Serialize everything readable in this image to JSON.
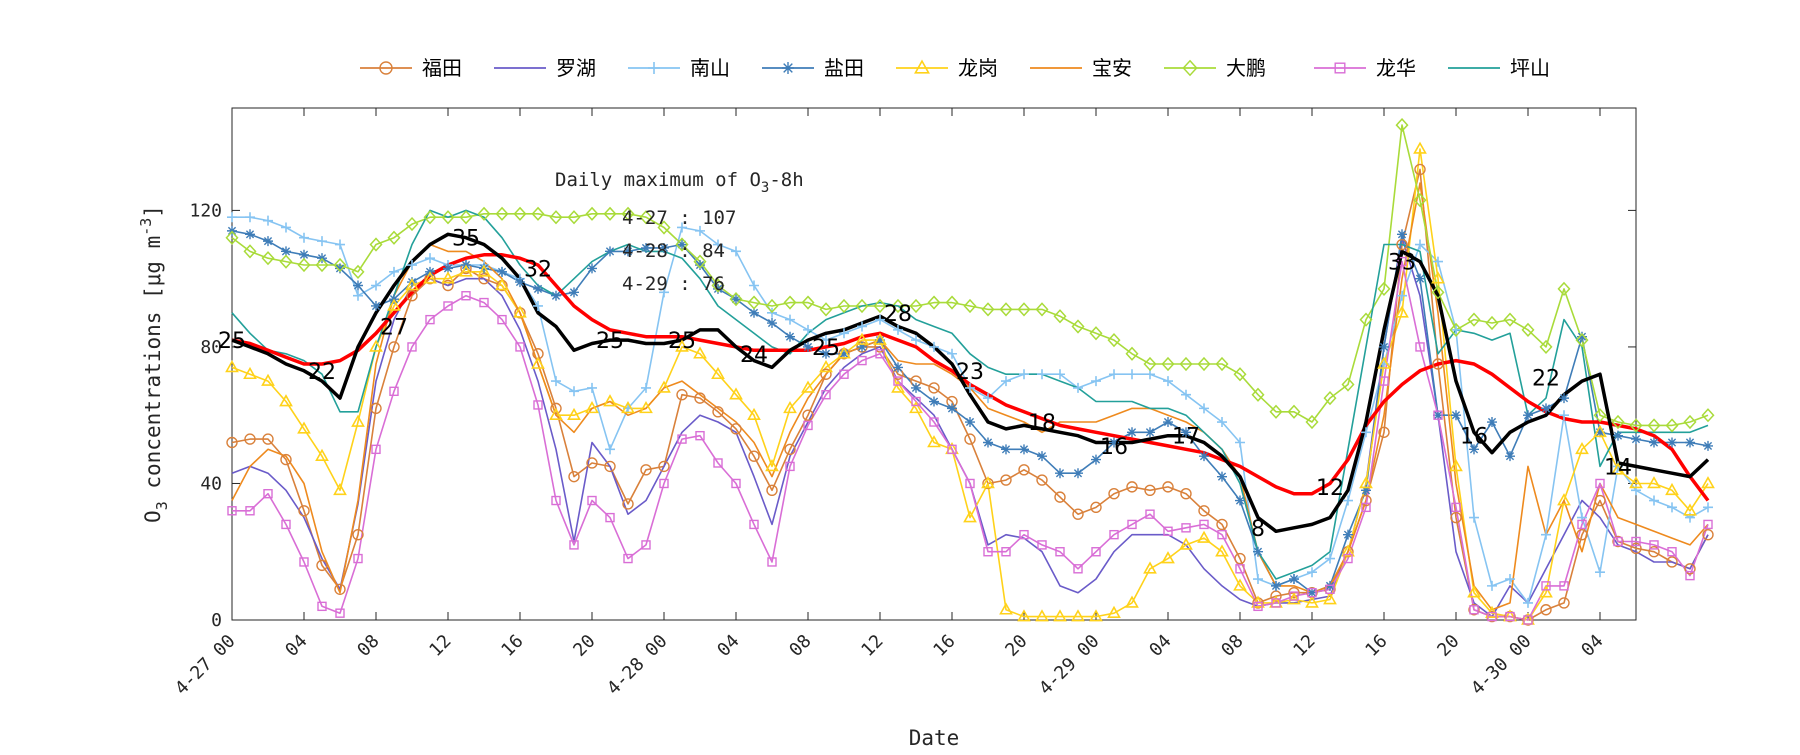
{
  "chart_data": {
    "type": "line",
    "title": "",
    "xlabel": "Date",
    "ylabel": "O3 concentrations [μg m-3]",
    "ylim": [
      0,
      150
    ],
    "xlim": [
      0,
      78
    ],
    "grid": "off",
    "legend_position": "top",
    "yticks": [
      0,
      40,
      80,
      120
    ],
    "xticks": [
      {
        "x": 0,
        "label": "4-27 00"
      },
      {
        "x": 4,
        "label": "04"
      },
      {
        "x": 8,
        "label": "08"
      },
      {
        "x": 12,
        "label": "12"
      },
      {
        "x": 16,
        "label": "16"
      },
      {
        "x": 20,
        "label": "20"
      },
      {
        "x": 24,
        "label": "4-28 00"
      },
      {
        "x": 28,
        "label": "04"
      },
      {
        "x": 32,
        "label": "08"
      },
      {
        "x": 36,
        "label": "12"
      },
      {
        "x": 40,
        "label": "16"
      },
      {
        "x": 44,
        "label": "20"
      },
      {
        "x": 48,
        "label": "4-29 00"
      },
      {
        "x": 52,
        "label": "04"
      },
      {
        "x": 56,
        "label": "08"
      },
      {
        "x": 60,
        "label": "12"
      },
      {
        "x": 64,
        "label": "16"
      },
      {
        "x": 68,
        "label": "20"
      },
      {
        "x": 72,
        "label": "4-30 00"
      },
      {
        "x": 76,
        "label": "04"
      }
    ],
    "annotation": {
      "title_parts": [
        "Daily maximum of O",
        "3",
        "-8h"
      ],
      "lines": [
        "4-27 : 107",
        "4-28 : 84",
        "4-29 : 76"
      ]
    },
    "series": [
      {
        "name": "福田",
        "color": "#D9813B",
        "marker": "circle",
        "values": [
          52,
          53,
          53,
          47,
          32,
          16,
          9,
          25,
          62,
          80,
          95,
          100,
          98,
          103,
          100,
          98,
          90,
          78,
          62,
          42,
          46,
          45,
          34,
          44,
          45,
          66,
          65,
          61,
          56,
          48,
          38,
          50,
          60,
          72,
          78,
          80,
          80,
          72,
          70,
          68,
          64,
          53,
          40,
          41,
          44,
          41,
          36,
          31,
          33,
          37,
          39,
          38,
          39,
          37,
          32,
          28,
          18,
          5,
          7,
          8,
          8,
          9,
          20,
          35,
          55,
          110,
          132,
          75,
          30,
          3,
          1,
          1,
          0,
          3,
          5,
          25,
          35,
          23,
          21,
          20,
          17,
          15,
          25
        ]
      },
      {
        "name": "罗湖",
        "color": "#6A5BC9",
        "marker": "none",
        "values": [
          43,
          45,
          43,
          38,
          30,
          18,
          9,
          34,
          70,
          88,
          98,
          100,
          98,
          100,
          100,
          95,
          85,
          70,
          50,
          23,
          52,
          45,
          31,
          35,
          45,
          55,
          60,
          58,
          55,
          42,
          28,
          48,
          58,
          68,
          74,
          78,
          80,
          70,
          65,
          60,
          50,
          40,
          22,
          25,
          24,
          20,
          10,
          8,
          12,
          20,
          25,
          25,
          25,
          22,
          15,
          10,
          6,
          4,
          5,
          5,
          6,
          7,
          20,
          40,
          80,
          112,
          95,
          60,
          20,
          5,
          1,
          10,
          5,
          15,
          25,
          35,
          30,
          22,
          20,
          17,
          17,
          15,
          25
        ]
      },
      {
        "name": "南山",
        "color": "#86C4F2",
        "marker": "plus",
        "values": [
          118,
          118,
          117,
          115,
          112,
          111,
          110,
          95,
          98,
          102,
          104,
          106,
          104,
          104,
          104,
          102,
          100,
          92,
          70,
          67,
          68,
          50,
          62,
          68,
          96,
          115,
          114,
          110,
          108,
          98,
          90,
          88,
          85,
          82,
          84,
          86,
          88,
          85,
          82,
          80,
          78,
          68,
          65,
          70,
          72,
          72,
          72,
          68,
          70,
          72,
          72,
          72,
          70,
          66,
          62,
          58,
          52,
          12,
          10,
          12,
          14,
          18,
          35,
          55,
          75,
          95,
          110,
          105,
          85,
          30,
          10,
          12,
          5,
          25,
          60,
          30,
          14,
          45,
          38,
          35,
          33,
          30,
          33
        ]
      },
      {
        "name": "盐田",
        "color": "#3F7DB8",
        "marker": "star",
        "values": [
          114,
          113,
          111,
          108,
          107,
          106,
          103,
          98,
          92,
          94,
          99,
          102,
          103,
          104,
          103,
          102,
          99,
          97,
          95,
          96,
          103,
          108,
          108,
          109,
          109,
          110,
          104,
          97,
          94,
          90,
          87,
          83,
          80,
          78,
          78,
          80,
          82,
          74,
          68,
          64,
          62,
          58,
          52,
          50,
          50,
          48,
          43,
          43,
          47,
          52,
          55,
          55,
          58,
          55,
          48,
          42,
          35,
          20,
          10,
          12,
          8,
          10,
          25,
          38,
          80,
          113,
          100,
          60,
          60,
          50,
          58,
          48,
          60,
          62,
          65,
          83,
          55,
          54,
          53,
          52,
          52,
          52,
          51
        ]
      },
      {
        "name": "龙岗",
        "color": "#FFD21A",
        "marker": "triangle",
        "values": [
          74,
          72,
          70,
          64,
          56,
          48,
          38,
          58,
          80,
          92,
          98,
          100,
          100,
          102,
          102,
          98,
          90,
          75,
          60,
          60,
          62,
          64,
          62,
          62,
          68,
          80,
          78,
          72,
          66,
          60,
          45,
          62,
          68,
          74,
          78,
          82,
          82,
          68,
          62,
          52,
          50,
          30,
          40,
          3,
          1,
          1,
          1,
          1,
          1,
          2,
          5,
          15,
          18,
          22,
          24,
          20,
          10,
          5,
          5,
          6,
          5,
          6,
          20,
          40,
          75,
          90,
          138,
          100,
          45,
          8,
          2,
          1,
          0,
          8,
          35,
          50,
          55,
          44,
          40,
          40,
          38,
          32,
          40
        ]
      },
      {
        "name": "宝安",
        "color": "#EE8A1E",
        "marker": "none",
        "values": [
          35,
          45,
          50,
          48,
          40,
          20,
          8,
          35,
          75,
          95,
          105,
          110,
          108,
          108,
          105,
          100,
          90,
          75,
          60,
          55,
          62,
          64,
          60,
          62,
          68,
          70,
          66,
          62,
          58,
          52,
          42,
          55,
          65,
          72,
          78,
          80,
          82,
          76,
          75,
          75,
          72,
          68,
          62,
          60,
          58,
          55,
          58,
          58,
          58,
          60,
          62,
          62,
          60,
          58,
          55,
          50,
          42,
          20,
          10,
          10,
          8,
          10,
          20,
          35,
          60,
          100,
          128,
          90,
          40,
          10,
          3,
          5,
          45,
          25,
          35,
          20,
          40,
          30,
          28,
          26,
          24,
          22,
          28
        ]
      },
      {
        "name": "大鹏",
        "color": "#A9DB3A",
        "marker": "diamond",
        "values": [
          112,
          108,
          106,
          105,
          104,
          104,
          104,
          102,
          110,
          112,
          116,
          118,
          118,
          118,
          119,
          119,
          119,
          119,
          118,
          118,
          119,
          119,
          119,
          118,
          115,
          110,
          105,
          98,
          94,
          93,
          92,
          93,
          93,
          91,
          92,
          92,
          92,
          92,
          92,
          93,
          93,
          92,
          91,
          91,
          91,
          91,
          89,
          86,
          84,
          82,
          78,
          75,
          75,
          75,
          75,
          75,
          72,
          66,
          61,
          61,
          58,
          65,
          69,
          88,
          97,
          145,
          123,
          96,
          85,
          88,
          87,
          88,
          85,
          80,
          97,
          82,
          60,
          58,
          57,
          57,
          57,
          58,
          60
        ]
      },
      {
        "name": "龙华",
        "color": "#D96ED6",
        "marker": "square",
        "values": [
          32,
          32,
          37,
          28,
          17,
          4,
          2,
          18,
          50,
          67,
          80,
          88,
          92,
          95,
          93,
          88,
          80,
          63,
          35,
          22,
          35,
          30,
          18,
          22,
          40,
          53,
          54,
          46,
          40,
          28,
          17,
          45,
          57,
          66,
          72,
          76,
          78,
          70,
          64,
          58,
          50,
          40,
          20,
          20,
          25,
          22,
          20,
          15,
          20,
          25,
          28,
          31,
          26,
          27,
          28,
          25,
          15,
          4,
          5,
          7,
          8,
          9,
          18,
          33,
          70,
          105,
          80,
          60,
          33,
          3,
          1,
          1,
          0,
          10,
          10,
          28,
          40,
          23,
          23,
          22,
          20,
          13,
          28
        ]
      },
      {
        "name": "坪山",
        "color": "#23A09A",
        "marker": "none",
        "values": [
          90,
          84,
          79,
          78,
          76,
          72,
          61,
          61,
          80,
          95,
          110,
          120,
          118,
          120,
          118,
          112,
          104,
          98,
          95,
          100,
          105,
          108,
          110,
          108,
          108,
          106,
          100,
          92,
          88,
          84,
          80,
          78,
          84,
          88,
          90,
          92,
          93,
          92,
          88,
          86,
          84,
          78,
          74,
          72,
          72,
          72,
          70,
          68,
          64,
          64,
          64,
          62,
          62,
          60,
          55,
          50,
          40,
          20,
          12,
          14,
          16,
          20,
          50,
          80,
          110,
          110,
          108,
          78,
          85,
          84,
          82,
          84,
          60,
          65,
          88,
          80,
          45,
          55,
          55,
          55,
          55,
          55,
          57
        ]
      },
      {
        "name": "",
        "color": "#000000",
        "marker": "none",
        "width": 3.5,
        "values": [
          82,
          80,
          78,
          75,
          73,
          70,
          65,
          80,
          90,
          98,
          105,
          110,
          113,
          112,
          110,
          106,
          100,
          90,
          86,
          79,
          81,
          82,
          82,
          81,
          81,
          82,
          85,
          85,
          80,
          76,
          74,
          79,
          82,
          84,
          85,
          87,
          89,
          86,
          84,
          80,
          75,
          66,
          58,
          56,
          57,
          56,
          55,
          54,
          52,
          52,
          52,
          53,
          54,
          54,
          52,
          48,
          42,
          30,
          26,
          27,
          28,
          30,
          38,
          58,
          85,
          108,
          105,
          95,
          70,
          55,
          49,
          55,
          58,
          60,
          66,
          70,
          72,
          46,
          45,
          44,
          43,
          42,
          47
        ]
      },
      {
        "name": "",
        "color": "#FF0000",
        "marker": "none",
        "width": 3.5,
        "values": [
          82,
          81,
          79,
          77,
          75,
          75,
          76,
          79,
          84,
          90,
          96,
          101,
          104,
          106,
          107,
          107,
          106,
          104,
          98,
          92,
          88,
          85,
          84,
          83,
          83,
          83,
          82,
          81,
          80,
          79,
          79,
          79,
          79,
          80,
          81,
          83,
          84,
          82,
          80,
          76,
          73,
          69,
          66,
          63,
          61,
          59,
          57,
          56,
          55,
          54,
          53,
          52,
          51,
          50,
          49,
          47,
          45,
          42,
          39,
          37,
          37,
          40,
          47,
          57,
          64,
          69,
          73,
          75,
          76,
          75,
          72,
          68,
          64,
          61,
          59,
          58,
          58,
          57,
          56,
          54,
          50,
          42,
          35
        ]
      }
    ],
    "segment_labels": [
      {
        "x": 0,
        "y": 82,
        "text": "25"
      },
      {
        "x": 5,
        "y": 73,
        "text": "22"
      },
      {
        "x": 9,
        "y": 86,
        "text": "27"
      },
      {
        "x": 13,
        "y": 112,
        "text": "35"
      },
      {
        "x": 17,
        "y": 103,
        "text": "32"
      },
      {
        "x": 21,
        "y": 82,
        "text": "25"
      },
      {
        "x": 25,
        "y": 82,
        "text": "25"
      },
      {
        "x": 29,
        "y": 78,
        "text": "24"
      },
      {
        "x": 33,
        "y": 80,
        "text": "25"
      },
      {
        "x": 37,
        "y": 90,
        "text": "28"
      },
      {
        "x": 41,
        "y": 73,
        "text": "23"
      },
      {
        "x": 45,
        "y": 58,
        "text": "18"
      },
      {
        "x": 49,
        "y": 51,
        "text": "16"
      },
      {
        "x": 53,
        "y": 54,
        "text": "17"
      },
      {
        "x": 57,
        "y": 27,
        "text": "8"
      },
      {
        "x": 61,
        "y": 39,
        "text": "12"
      },
      {
        "x": 65,
        "y": 105,
        "text": "33"
      },
      {
        "x": 69,
        "y": 54,
        "text": "16"
      },
      {
        "x": 73,
        "y": 71,
        "text": "22"
      },
      {
        "x": 77,
        "y": 45,
        "text": "14"
      }
    ]
  }
}
